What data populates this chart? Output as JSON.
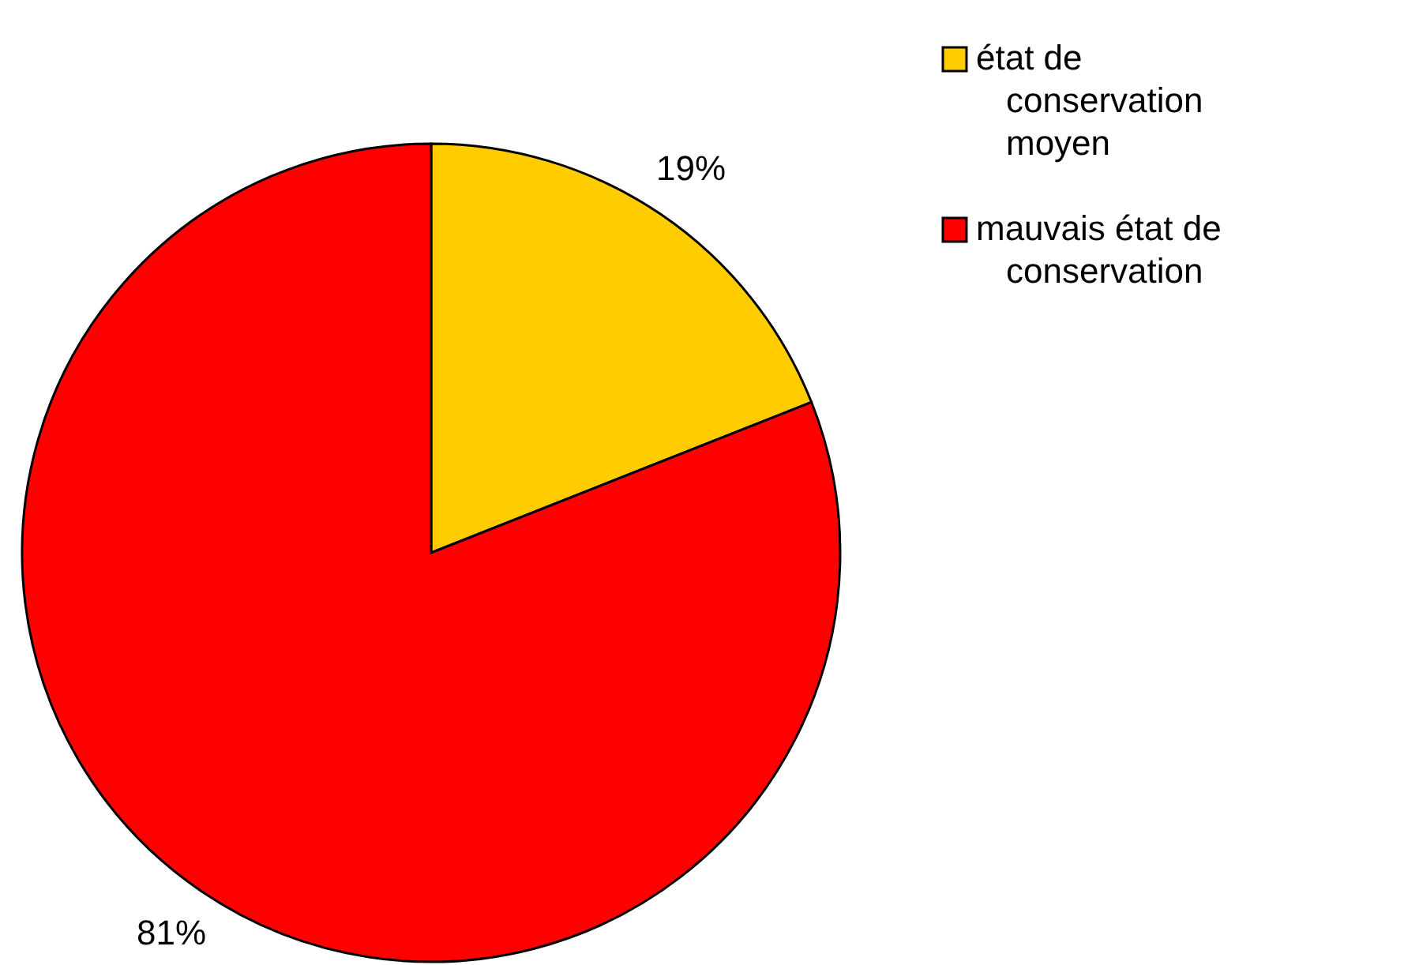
{
  "chart_data": {
    "type": "pie",
    "categories": [
      "état de conservation moyen",
      "mauvais état de conservation"
    ],
    "values": [
      19,
      81
    ],
    "colors": [
      "#ffcc00",
      "#ff0000"
    ],
    "value_labels": [
      "19%",
      "81%"
    ],
    "legend": "right"
  }
}
